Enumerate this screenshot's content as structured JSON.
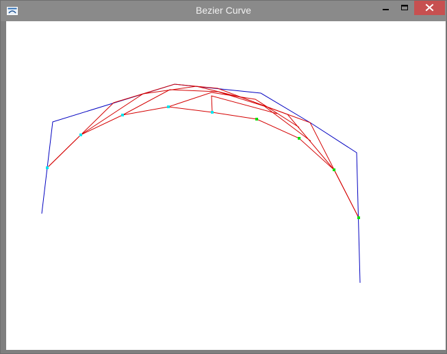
{
  "window": {
    "title": "Bezier Curve",
    "icons": {
      "app": "application-icon",
      "minimize": "minimize-icon",
      "maximize": "maximize-icon",
      "close": "close-icon"
    },
    "colors": {
      "titlebar": "#8a8a8a",
      "close_button": "#c75050",
      "canvas_background": "#ffffff"
    }
  },
  "drawing": {
    "control_polygon_color": "#0000c0",
    "construction_color": "#d40000",
    "left_point_color": "#00e5ee",
    "right_point_color": "#00e000"
  }
}
